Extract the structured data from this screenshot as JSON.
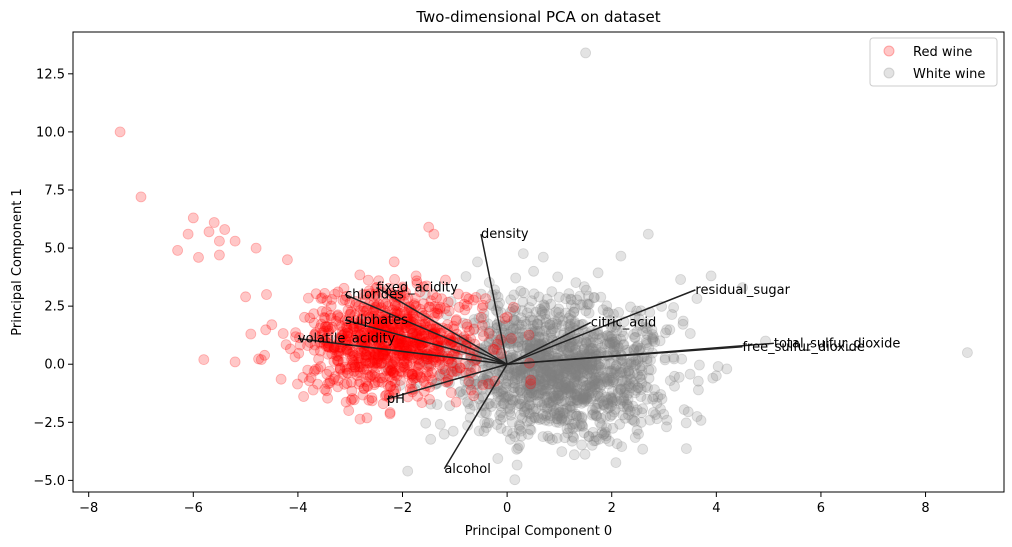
{
  "chart_data": {
    "type": "scatter",
    "title": "Two-dimensional PCA on dataset",
    "xlabel": "Principal Component 0",
    "ylabel": "Principal Component 1",
    "xlim": [
      -8.3,
      9.5
    ],
    "ylim": [
      -5.5,
      14.3
    ],
    "xticks": [
      -8,
      -6,
      -4,
      -2,
      0,
      2,
      4,
      6,
      8
    ],
    "yticks": [
      -5.0,
      -2.5,
      0.0,
      2.5,
      5.0,
      7.5,
      10.0,
      12.5
    ],
    "grid": false,
    "legend_position": "top-right",
    "series": [
      {
        "name": "Red wine",
        "color": "#ff0000",
        "alpha": 0.22,
        "outliers": [
          [
            -7.4,
            10.0
          ],
          [
            -7.0,
            7.2
          ],
          [
            -6.3,
            4.9
          ],
          [
            -6.1,
            5.6
          ],
          [
            -6.0,
            6.3
          ],
          [
            -5.9,
            4.6
          ],
          [
            -5.7,
            5.7
          ],
          [
            -5.6,
            6.1
          ],
          [
            -5.5,
            5.3
          ],
          [
            -5.4,
            5.8
          ],
          [
            -5.2,
            5.3
          ],
          [
            -5.8,
            0.2
          ],
          [
            -5.5,
            4.7
          ],
          [
            -5.0,
            2.9
          ],
          [
            -4.8,
            5.0
          ],
          [
            -4.6,
            3.0
          ],
          [
            -4.9,
            1.3
          ],
          [
            -5.2,
            0.1
          ],
          [
            -4.7,
            0.2
          ],
          [
            -4.5,
            1.7
          ],
          [
            -4.2,
            4.5
          ],
          [
            -1.5,
            5.9
          ],
          [
            -1.4,
            5.6
          ]
        ],
        "cluster": {
          "cx": -2.2,
          "cy": 0.9,
          "sx": 0.85,
          "sy": 1.15,
          "count": 900,
          "seed": 7
        }
      },
      {
        "name": "White wine",
        "color": "#808080",
        "alpha": 0.22,
        "outliers": [
          [
            1.5,
            13.4
          ],
          [
            8.8,
            0.5
          ],
          [
            3.9,
            3.8
          ],
          [
            4.2,
            -0.2
          ],
          [
            4.0,
            -0.5
          ],
          [
            -1.9,
            -4.6
          ],
          [
            2.7,
            5.6
          ],
          [
            4.5,
            3.3
          ]
        ],
        "cluster": {
          "cx": 1.0,
          "cy": -0.2,
          "sx": 1.05,
          "sy": 1.45,
          "count": 1500,
          "seed": 13
        }
      }
    ],
    "loadings": [
      {
        "name": "density",
        "x": -0.5,
        "y": 5.6
      },
      {
        "name": "residual_sugar",
        "x": 3.6,
        "y": 3.2
      },
      {
        "name": "citric_acid",
        "x": 1.6,
        "y": 1.8
      },
      {
        "name": "total_sulfur_dioxide",
        "x": 5.1,
        "y": 0.9
      },
      {
        "name": "free_sulfur_dioxide",
        "x": 4.5,
        "y": 0.75
      },
      {
        "name": "fixed_acidity",
        "x": -2.5,
        "y": 3.3
      },
      {
        "name": "chlorides",
        "x": -3.1,
        "y": 3.0
      },
      {
        "name": "sulphates",
        "x": -3.1,
        "y": 1.9
      },
      {
        "name": "volatile_acidity",
        "x": -4.0,
        "y": 1.1
      },
      {
        "name": "pH",
        "x": -2.3,
        "y": -1.5
      },
      {
        "name": "alcohol",
        "x": -1.2,
        "y": -4.5
      }
    ]
  }
}
